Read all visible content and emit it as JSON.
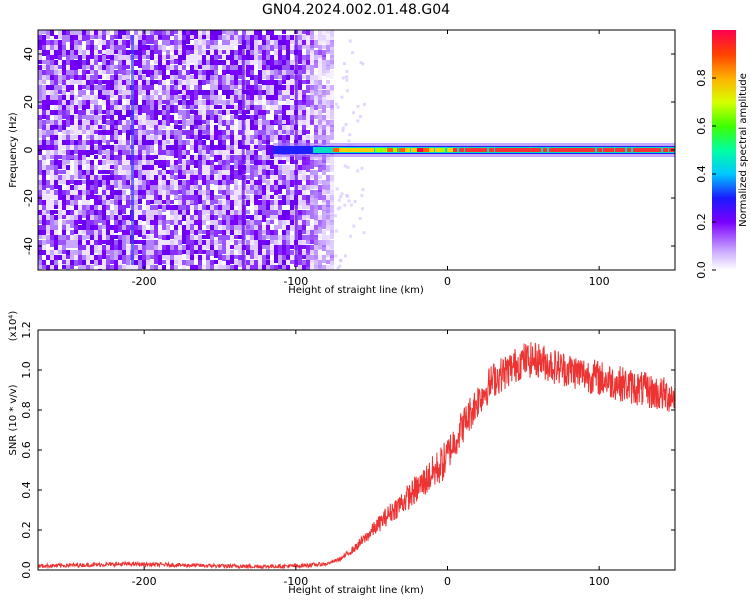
{
  "title": "GN04.2024.002.01.48.G04",
  "chart_data": [
    {
      "type": "heatmap",
      "xlabel": "Height of straight line (km)",
      "ylabel": "Frequency (Hz)",
      "xlim": [
        -270,
        150
      ],
      "ylim": [
        -50,
        50
      ],
      "xticks": [
        -200,
        -100,
        0,
        100
      ],
      "yticks": [
        -40,
        -20,
        0,
        20,
        40
      ],
      "colorbar": {
        "label": "Normalized spectral amplitude",
        "ticks": [
          "0.0",
          "0.2",
          "0.4",
          "0.6",
          "0.8"
        ],
        "range": [
          0,
          1
        ]
      },
      "features": {
        "noise_region_x": [
          -270,
          -75
        ],
        "signal_line_x": [
          -115,
          150
        ],
        "signal_frequency_hz": 0,
        "vertical_streaks_x": [
          -208,
          -135,
          -100
        ]
      }
    },
    {
      "type": "line",
      "xlabel": "Height of straight line (km)",
      "ylabel": "SNR (10 * v/v)",
      "yunit": "(x10⁴)",
      "xlim": [
        -270,
        150
      ],
      "ylim": [
        0,
        1.2
      ],
      "xticks": [
        -200,
        -100,
        0,
        100
      ],
      "yticks": [
        "0.0",
        "0.2",
        "0.4",
        "0.6",
        "0.8",
        "1.0",
        "1.2"
      ],
      "color": "#ee3333",
      "series": [
        {
          "x": [
            -270,
            -240,
            -210,
            -180,
            -150,
            -120,
            -100,
            -80,
            -70,
            -60,
            -50,
            -40,
            -30,
            -20,
            -10,
            0,
            10,
            20,
            30,
            40,
            50,
            60,
            70,
            80,
            90,
            100,
            110,
            120,
            130,
            140,
            150
          ],
          "values": [
            0.02,
            0.025,
            0.03,
            0.025,
            0.02,
            0.018,
            0.02,
            0.03,
            0.06,
            0.12,
            0.2,
            0.28,
            0.35,
            0.42,
            0.5,
            0.58,
            0.72,
            0.85,
            0.95,
            1.0,
            1.05,
            1.05,
            1.02,
            1.0,
            0.98,
            0.96,
            0.94,
            0.92,
            0.9,
            0.88,
            0.87
          ]
        }
      ]
    }
  ]
}
